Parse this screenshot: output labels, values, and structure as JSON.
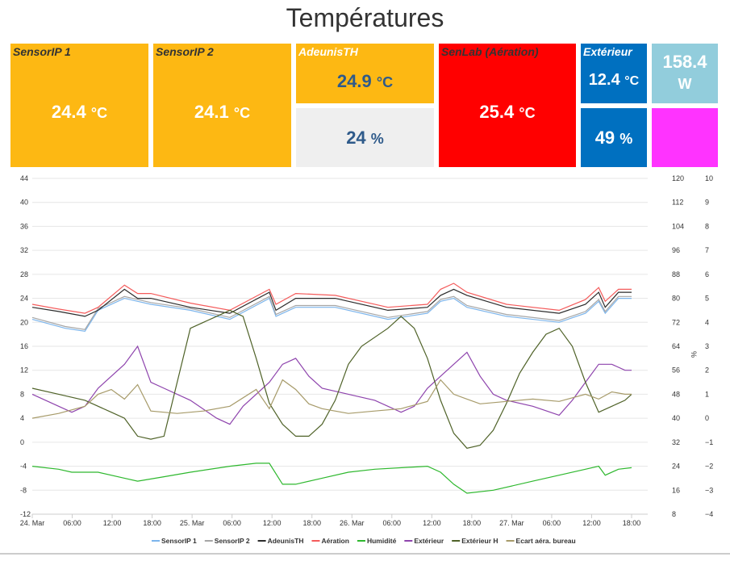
{
  "page": {
    "title": "Températures"
  },
  "tiles": {
    "sensorip1": {
      "label": "SensorIP 1",
      "value": "24.4",
      "unit": "°C",
      "color": "#FDB813"
    },
    "sensorip2": {
      "label": "SensorIP 2",
      "value": "24.1",
      "unit": "°C",
      "color": "#FDB813"
    },
    "adeunis_temp": {
      "label": "AdeunisTH",
      "value": "24.9",
      "unit": "°C",
      "color": "#FDB813"
    },
    "adeunis_hum": {
      "value": "24",
      "unit": "%",
      "color": "#EFEFEF"
    },
    "senlab": {
      "label": "SenLab (Aération)",
      "value": "25.4",
      "unit": "°C",
      "color": "#FF0000"
    },
    "exterieur_temp": {
      "label": "Extérieur",
      "value": "12.4",
      "unit": "°C",
      "color": "#0070C0"
    },
    "exterieur_hum": {
      "value": "49",
      "unit": "%",
      "color": "#0070C0"
    },
    "power": {
      "value": "158.4",
      "unit": "W",
      "color": "#92CDDC"
    },
    "magenta": {
      "color": "#FF33FF"
    }
  },
  "chart_data": {
    "type": "line",
    "x_ticks": [
      "24. Mar",
      "06:00",
      "12:00",
      "18:00",
      "25. Mar",
      "06:00",
      "12:00",
      "18:00",
      "26. Mar",
      "06:00",
      "12:00",
      "18:00",
      "27. Mar",
      "06:00",
      "12:00",
      "18:00"
    ],
    "x_range_hours": [
      0,
      91
    ],
    "y_left": {
      "min": -12,
      "max": 44,
      "ticks": [
        "44",
        "40",
        "36",
        "32",
        "28",
        "24",
        "20",
        "16",
        "12",
        "8",
        "4",
        "0",
        "-4",
        "-8",
        "-12"
      ]
    },
    "y_right1": {
      "min": 8,
      "max": 120,
      "label": "%",
      "ticks": [
        "120",
        "112",
        "104",
        "96",
        "88",
        "80",
        "72",
        "64",
        "56",
        "48",
        "40",
        "32",
        "24",
        "16",
        "8"
      ]
    },
    "y_right2": {
      "min": -4,
      "max": 10,
      "ticks": [
        "10",
        "9",
        "8",
        "7",
        "6",
        "5",
        "4",
        "3",
        "2",
        "1",
        "0",
        "−1",
        "−2",
        "−3",
        "−4"
      ]
    },
    "series": [
      {
        "name": "SensorIP 1",
        "color": "#7cb5ec",
        "axis": "left",
        "points": [
          [
            0,
            20.5
          ],
          [
            5,
            19
          ],
          [
            8,
            18.5
          ],
          [
            10,
            22
          ],
          [
            14,
            24
          ],
          [
            16,
            23.5
          ],
          [
            18,
            23
          ],
          [
            24,
            22
          ],
          [
            30,
            20.5
          ],
          [
            36,
            24
          ],
          [
            37,
            21
          ],
          [
            40,
            22.5
          ],
          [
            46,
            22.5
          ],
          [
            54,
            20.5
          ],
          [
            60,
            21.5
          ],
          [
            62,
            23.5
          ],
          [
            64,
            24
          ],
          [
            66,
            22.5
          ],
          [
            72,
            21
          ],
          [
            80,
            20
          ],
          [
            84,
            21.5
          ],
          [
            86,
            23.5
          ],
          [
            87,
            21.5
          ],
          [
            89,
            24
          ],
          [
            91,
            24
          ]
        ]
      },
      {
        "name": "SensorIP 2",
        "color": "#a6a6a6",
        "axis": "left",
        "points": [
          [
            0,
            20.8
          ],
          [
            5,
            19.3
          ],
          [
            8,
            18.8
          ],
          [
            10,
            22.3
          ],
          [
            14,
            24.3
          ],
          [
            16,
            23.8
          ],
          [
            18,
            23.3
          ],
          [
            24,
            22.3
          ],
          [
            30,
            20.8
          ],
          [
            36,
            24.3
          ],
          [
            37,
            21.3
          ],
          [
            40,
            22.8
          ],
          [
            46,
            22.8
          ],
          [
            54,
            20.8
          ],
          [
            60,
            21.8
          ],
          [
            62,
            23.8
          ],
          [
            64,
            24.3
          ],
          [
            66,
            22.8
          ],
          [
            72,
            21.3
          ],
          [
            80,
            20.3
          ],
          [
            84,
            21.8
          ],
          [
            86,
            23.8
          ],
          [
            87,
            21.8
          ],
          [
            89,
            24.3
          ],
          [
            91,
            24.3
          ]
        ]
      },
      {
        "name": "AdeunisTH",
        "color": "#2b2b2b",
        "axis": "left",
        "points": [
          [
            0,
            22.5
          ],
          [
            4,
            21.8
          ],
          [
            8,
            21
          ],
          [
            10,
            22
          ],
          [
            14,
            25.5
          ],
          [
            16,
            24
          ],
          [
            18,
            24
          ],
          [
            24,
            22.5
          ],
          [
            30,
            21.5
          ],
          [
            36,
            25
          ],
          [
            37,
            22
          ],
          [
            40,
            24
          ],
          [
            46,
            24
          ],
          [
            54,
            22
          ],
          [
            60,
            22.5
          ],
          [
            62,
            24.5
          ],
          [
            64,
            25.5
          ],
          [
            66,
            24.5
          ],
          [
            72,
            22.5
          ],
          [
            80,
            21.5
          ],
          [
            84,
            23
          ],
          [
            86,
            25
          ],
          [
            87,
            22.5
          ],
          [
            89,
            25
          ],
          [
            91,
            25
          ]
        ]
      },
      {
        "name": "Aération",
        "color": "#f45b5b",
        "axis": "left",
        "points": [
          [
            0,
            23
          ],
          [
            4,
            22.2
          ],
          [
            8,
            21.5
          ],
          [
            10,
            22.5
          ],
          [
            14,
            26.2
          ],
          [
            16,
            24.8
          ],
          [
            18,
            24.8
          ],
          [
            24,
            23.2
          ],
          [
            30,
            22
          ],
          [
            36,
            25.5
          ],
          [
            37,
            23
          ],
          [
            40,
            24.8
          ],
          [
            46,
            24.5
          ],
          [
            54,
            22.5
          ],
          [
            60,
            23
          ],
          [
            62,
            25.5
          ],
          [
            64,
            26.5
          ],
          [
            66,
            25
          ],
          [
            72,
            23
          ],
          [
            80,
            22
          ],
          [
            84,
            23.8
          ],
          [
            86,
            25.8
          ],
          [
            87,
            23.5
          ],
          [
            89,
            25.5
          ],
          [
            91,
            25.5
          ]
        ]
      },
      {
        "name": "Humidité",
        "color": "#2eb82e",
        "axis": "right1",
        "points": [
          [
            0,
            24
          ],
          [
            4,
            23
          ],
          [
            6,
            22
          ],
          [
            10,
            22
          ],
          [
            14,
            20
          ],
          [
            16,
            19
          ],
          [
            20,
            20.5
          ],
          [
            24,
            22
          ],
          [
            30,
            24
          ],
          [
            34,
            25
          ],
          [
            36,
            25
          ],
          [
            38,
            18
          ],
          [
            40,
            18
          ],
          [
            44,
            20
          ],
          [
            48,
            22
          ],
          [
            52,
            23
          ],
          [
            60,
            24
          ],
          [
            62,
            22
          ],
          [
            64,
            18
          ],
          [
            66,
            15
          ],
          [
            70,
            16
          ],
          [
            76,
            19
          ],
          [
            80,
            21
          ],
          [
            84,
            23
          ],
          [
            86,
            24
          ],
          [
            87,
            21
          ],
          [
            89,
            23
          ],
          [
            91,
            23.5
          ]
        ]
      },
      {
        "name": "Extérieur",
        "color": "#8e44ad",
        "axis": "left",
        "points": [
          [
            0,
            8
          ],
          [
            4,
            6
          ],
          [
            6,
            5
          ],
          [
            8,
            6
          ],
          [
            10,
            9
          ],
          [
            14,
            13
          ],
          [
            16,
            16
          ],
          [
            18,
            10
          ],
          [
            20,
            9
          ],
          [
            24,
            7
          ],
          [
            28,
            4
          ],
          [
            30,
            3
          ],
          [
            32,
            6
          ],
          [
            36,
            10
          ],
          [
            38,
            13
          ],
          [
            40,
            14
          ],
          [
            42,
            11
          ],
          [
            44,
            9
          ],
          [
            48,
            8
          ],
          [
            52,
            7
          ],
          [
            56,
            5
          ],
          [
            58,
            6
          ],
          [
            60,
            9
          ],
          [
            62,
            11
          ],
          [
            64,
            13
          ],
          [
            66,
            15
          ],
          [
            68,
            11
          ],
          [
            70,
            8
          ],
          [
            72,
            7
          ],
          [
            76,
            6
          ],
          [
            80,
            4.5
          ],
          [
            82,
            7
          ],
          [
            84,
            10
          ],
          [
            86,
            13
          ],
          [
            88,
            13
          ],
          [
            90,
            12
          ],
          [
            91,
            12
          ]
        ]
      },
      {
        "name": "Extérieur H",
        "color": "#4f6228",
        "axis": "right1",
        "points": [
          [
            0,
            50
          ],
          [
            4,
            48
          ],
          [
            8,
            46
          ],
          [
            12,
            42
          ],
          [
            14,
            40
          ],
          [
            16,
            34
          ],
          [
            18,
            33
          ],
          [
            20,
            34
          ],
          [
            24,
            70
          ],
          [
            28,
            74
          ],
          [
            30,
            76
          ],
          [
            32,
            74
          ],
          [
            34,
            60
          ],
          [
            36,
            45
          ],
          [
            38,
            38
          ],
          [
            40,
            34
          ],
          [
            42,
            34
          ],
          [
            44,
            38
          ],
          [
            46,
            46
          ],
          [
            48,
            58
          ],
          [
            50,
            64
          ],
          [
            54,
            70
          ],
          [
            56,
            74
          ],
          [
            58,
            70
          ],
          [
            60,
            60
          ],
          [
            62,
            46
          ],
          [
            64,
            35
          ],
          [
            66,
            30
          ],
          [
            68,
            31
          ],
          [
            70,
            36
          ],
          [
            72,
            45
          ],
          [
            74,
            55
          ],
          [
            76,
            62
          ],
          [
            78,
            68
          ],
          [
            80,
            70
          ],
          [
            82,
            64
          ],
          [
            84,
            52
          ],
          [
            86,
            42
          ],
          [
            88,
            44
          ],
          [
            90,
            46
          ],
          [
            91,
            48
          ]
        ]
      },
      {
        "name": "Ecart aéra. bureau",
        "color": "#a79b6a",
        "axis": "right2",
        "points": [
          [
            0,
            0
          ],
          [
            4,
            0.2
          ],
          [
            8,
            0.5
          ],
          [
            10,
            1
          ],
          [
            12,
            1.2
          ],
          [
            14,
            0.8
          ],
          [
            16,
            1.4
          ],
          [
            18,
            0.3
          ],
          [
            22,
            0.2
          ],
          [
            26,
            0.3
          ],
          [
            30,
            0.5
          ],
          [
            34,
            1.2
          ],
          [
            36,
            0.4
          ],
          [
            38,
            1.6
          ],
          [
            40,
            1.2
          ],
          [
            42,
            0.6
          ],
          [
            44,
            0.4
          ],
          [
            48,
            0.2
          ],
          [
            52,
            0.3
          ],
          [
            56,
            0.4
          ],
          [
            60,
            0.7
          ],
          [
            62,
            1.6
          ],
          [
            64,
            1
          ],
          [
            66,
            0.8
          ],
          [
            68,
            0.6
          ],
          [
            72,
            0.7
          ],
          [
            76,
            0.8
          ],
          [
            80,
            0.7
          ],
          [
            84,
            1
          ],
          [
            86,
            0.8
          ],
          [
            88,
            1.1
          ],
          [
            90,
            1
          ],
          [
            91,
            1
          ]
        ]
      }
    ]
  }
}
